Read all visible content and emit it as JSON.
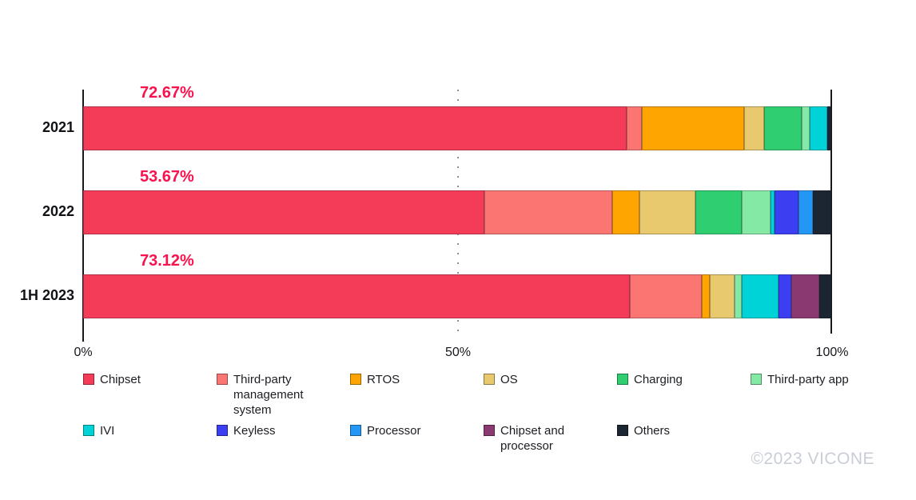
{
  "chart_data": {
    "type": "bar",
    "orientation": "horizontal",
    "stacked": true,
    "unit": "%",
    "categories": [
      "2021",
      "2022",
      "1H 2023"
    ],
    "series": [
      {
        "name": "Chipset",
        "color": "#F43B58",
        "values": [
          72.67,
          53.67,
          73.12
        ]
      },
      {
        "name": "Third-party management system",
        "color": "#FB7572",
        "values": [
          2.0,
          17.1,
          9.53
        ]
      },
      {
        "name": "RTOS",
        "color": "#FFA502",
        "values": [
          13.7,
          3.6,
          1.07
        ]
      },
      {
        "name": "OS",
        "color": "#E8C96E",
        "values": [
          2.67,
          7.43,
          3.35
        ]
      },
      {
        "name": "Charging",
        "color": "#2FCE71",
        "values": [
          5.0,
          6.2,
          0
        ]
      },
      {
        "name": "Third-party app",
        "color": "#84E9A5",
        "values": [
          1.1,
          3.9,
          0.92
        ]
      },
      {
        "name": "IVI",
        "color": "#00D3D7",
        "values": [
          2.35,
          0.55,
          4.98
        ]
      },
      {
        "name": "Keyless",
        "color": "#3B3EF1",
        "values": [
          0,
          3.2,
          1.71
        ]
      },
      {
        "name": "Processor",
        "color": "#2496F3",
        "values": [
          0,
          1.95,
          0
        ]
      },
      {
        "name": "Chipset and processor",
        "color": "#8B3A71",
        "values": [
          0,
          0,
          3.7
        ]
      },
      {
        "name": "Others",
        "color": "#1C2632",
        "values": [
          0.51,
          2.4,
          1.62
        ]
      }
    ],
    "bar_labels": [
      "72.67%",
      "53.67%",
      "73.12%"
    ],
    "x_axis": {
      "range": [
        0,
        100
      ],
      "ticks": [
        "0%",
        "50%",
        "100%"
      ],
      "gridline_at_50": "dotted"
    },
    "legend_position": "bottom"
  },
  "styles": {
    "bar_label_color": "#F8124E",
    "axis_color": "#17191F",
    "watermark_color": "#C9CED6"
  },
  "watermark": "©2023 VICONE"
}
